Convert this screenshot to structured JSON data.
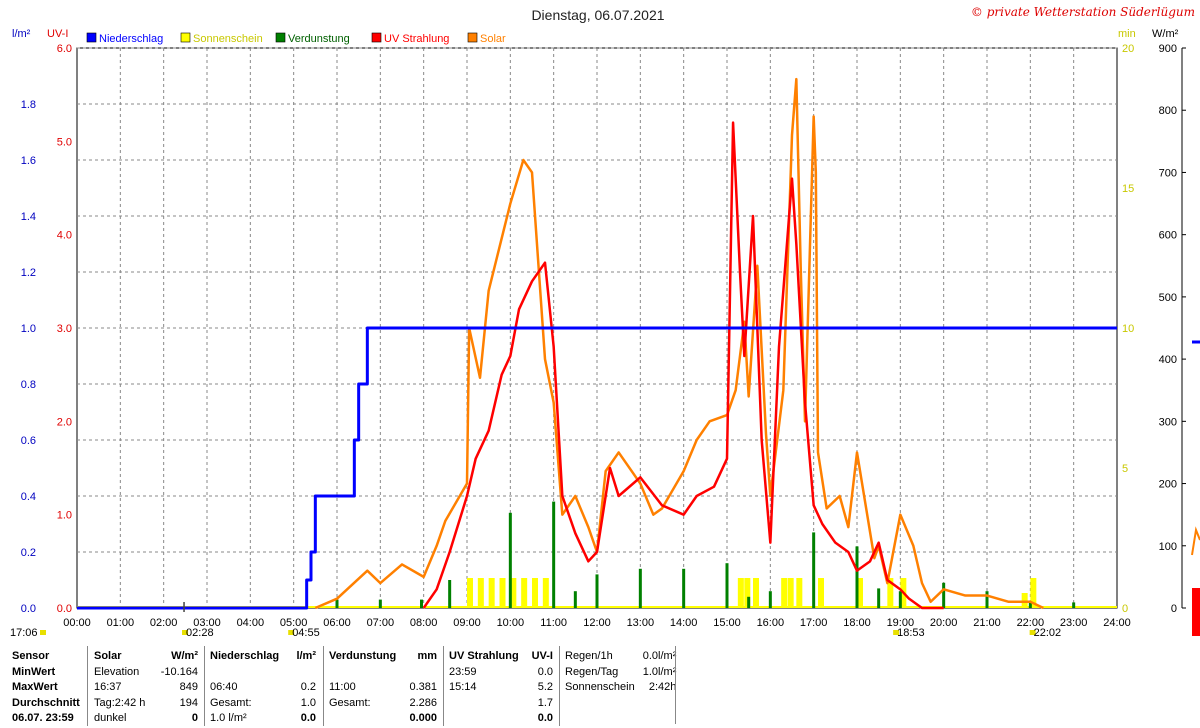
{
  "title": "Dienstag, 06.07.2021",
  "copyright": "© private Wetterstation Süderlügum",
  "axis_units": {
    "left1": "l/m²",
    "left2": "UV-I",
    "right1": "min",
    "right2": "W/m²"
  },
  "legend": [
    {
      "label": "Niederschlag",
      "color": "#0000ff"
    },
    {
      "label": "Sonnenschein",
      "color": "#ffff00"
    },
    {
      "label": "Verdunstung",
      "color": "#008000"
    },
    {
      "label": "UV Strahlung",
      "color": "#ff0000"
    },
    {
      "label": "Solar",
      "color": "#ff8000"
    }
  ],
  "time_markers": [
    {
      "label": "17:06",
      "pos": 17.1
    },
    {
      "label": "02:28",
      "pos": 2.47
    },
    {
      "label": "04:55",
      "pos": 4.92
    },
    {
      "label": "18:53",
      "pos": 18.88
    },
    {
      "label": "22:02",
      "pos": 22.03
    }
  ],
  "chart_data": {
    "type": "line",
    "title": "Dienstag, 06.07.2021",
    "x_ticks": [
      "00:00",
      "01:00",
      "02:00",
      "03:00",
      "04:00",
      "05:00",
      "06:00",
      "07:00",
      "08:00",
      "09:00",
      "10:00",
      "11:00",
      "12:00",
      "13:00",
      "14:00",
      "15:00",
      "16:00",
      "17:00",
      "18:00",
      "19:00",
      "20:00",
      "21:00",
      "22:00",
      "23:00",
      "24:00"
    ],
    "xlim": [
      0,
      24
    ],
    "y_axes": {
      "precip": {
        "label": "l/m²",
        "ticks": [
          "0.0",
          "0.2",
          "0.4",
          "0.6",
          "0.8",
          "1.0",
          "1.2",
          "1.4",
          "1.6",
          "1.8"
        ],
        "ylim": [
          0,
          2.0
        ]
      },
      "uv": {
        "label": "UV-I",
        "ticks": [
          "0.0",
          "1.0",
          "2.0",
          "3.0",
          "4.0",
          "5.0",
          "6.0"
        ],
        "ylim": [
          0,
          6.0
        ]
      },
      "sun": {
        "label": "min",
        "ticks": [
          "0",
          "5",
          "10",
          "15",
          "20"
        ],
        "ylim": [
          0,
          20
        ]
      },
      "solar": {
        "label": "W/m²",
        "ticks": [
          "0",
          "100",
          "200",
          "300",
          "400",
          "500",
          "600",
          "700",
          "800",
          "900"
        ],
        "ylim": [
          0,
          900
        ]
      }
    },
    "series": [
      {
        "name": "Niederschlag",
        "axis": "precip",
        "type": "step",
        "x": [
          0,
          5.3,
          5.4,
          5.5,
          6.3,
          6.4,
          6.5,
          6.7,
          24
        ],
        "y": [
          0,
          0.1,
          0.2,
          0.4,
          0.4,
          0.6,
          0.8,
          1.0,
          1.0
        ]
      },
      {
        "name": "Solar",
        "axis": "solar",
        "type": "line",
        "x": [
          5.5,
          6.0,
          6.7,
          7.0,
          7.5,
          8.0,
          8.3,
          8.5,
          9.0,
          9.05,
          9.3,
          9.5,
          10.0,
          10.3,
          10.5,
          10.7,
          10.8,
          11.0,
          11.2,
          11.5,
          11.8,
          12.0,
          12.2,
          12.5,
          13.0,
          13.3,
          13.5,
          14.0,
          14.3,
          14.6,
          15.0,
          15.2,
          15.4,
          15.5,
          15.7,
          15.9,
          16.0,
          16.3,
          16.5,
          16.6,
          16.7,
          16.8,
          17.0,
          17.05,
          17.1,
          17.3,
          17.6,
          17.8,
          18.0,
          18.4,
          18.5,
          18.7,
          19.0,
          19.3,
          19.5,
          19.7,
          20.0,
          20.5,
          21.0,
          21.5,
          22.0,
          22.3
        ],
        "y": [
          0,
          15,
          60,
          40,
          70,
          50,
          100,
          140,
          200,
          450,
          370,
          510,
          650,
          720,
          700,
          500,
          400,
          330,
          150,
          180,
          130,
          90,
          220,
          250,
          200,
          150,
          160,
          220,
          270,
          300,
          310,
          350,
          460,
          340,
          550,
          280,
          180,
          350,
          760,
          850,
          550,
          300,
          790,
          700,
          250,
          160,
          180,
          130,
          250,
          80,
          100,
          40,
          150,
          100,
          40,
          10,
          30,
          20,
          20,
          10,
          10,
          0
        ]
      },
      {
        "name": "UV Strahlung",
        "axis": "uv",
        "type": "line",
        "x": [
          8.0,
          8.3,
          8.6,
          9.0,
          9.2,
          9.5,
          9.8,
          10.0,
          10.2,
          10.5,
          10.8,
          11.0,
          11.2,
          11.5,
          11.8,
          12.0,
          12.3,
          12.5,
          13.0,
          13.5,
          14.0,
          14.3,
          14.7,
          15.0,
          15.14,
          15.3,
          15.4,
          15.6,
          15.8,
          16.0,
          16.2,
          16.5,
          16.6,
          16.8,
          17.0,
          17.2,
          17.5,
          17.8,
          18.0,
          18.3,
          18.5,
          18.7,
          19.0,
          19.2,
          19.5,
          19.8,
          20.0
        ],
        "y": [
          0,
          0.2,
          0.6,
          1.2,
          1.6,
          1.9,
          2.5,
          2.7,
          3.2,
          3.5,
          3.7,
          2.8,
          1.2,
          0.8,
          0.5,
          0.6,
          1.5,
          1.2,
          1.4,
          1.1,
          1.0,
          1.2,
          1.3,
          1.6,
          5.2,
          3.6,
          2.7,
          4.2,
          1.8,
          0.7,
          2.8,
          4.6,
          3.9,
          2.2,
          1.1,
          0.9,
          0.7,
          0.6,
          0.4,
          0.5,
          0.7,
          0.3,
          0.2,
          0.1,
          0,
          0,
          0
        ]
      },
      {
        "name": "Sonnenschein",
        "axis": "sun",
        "type": "bar",
        "x": [
          9.0,
          9.25,
          9.5,
          9.75,
          10.0,
          10.25,
          10.5,
          10.75,
          15.25,
          15.4,
          15.6,
          16.25,
          16.4,
          16.6,
          17.1,
          18.0,
          18.7,
          19.0,
          21.8,
          22.0
        ],
        "y": [
          1,
          1,
          1,
          1,
          1,
          1,
          1,
          1,
          1,
          1,
          1,
          1,
          1,
          1,
          1,
          1,
          1,
          1,
          0.5,
          1
        ],
        "bar_max": 1
      }
    ],
    "verdunstung": {
      "name": "Verdunstung",
      "axis": "precip",
      "x": [
        6.0,
        7.0,
        7.95,
        8.6,
        10.0,
        11.0,
        11.5,
        12.0,
        13.0,
        14.0,
        15.0,
        15.5,
        16.0,
        17.0,
        18.0,
        18.5,
        19.0,
        20.0,
        21.0,
        22.0,
        23.0
      ],
      "y": [
        0.03,
        0.03,
        0.03,
        0.1,
        0.34,
        0.38,
        0.06,
        0.12,
        0.14,
        0.14,
        0.16,
        0.04,
        0.06,
        0.27,
        0.22,
        0.07,
        0.06,
        0.09,
        0.06,
        0.02,
        0.02
      ]
    }
  },
  "summary": {
    "labels": {
      "sensor": "Sensor",
      "min": "MinWert",
      "max": "MaxWert",
      "avg": "Durchschnitt",
      "date": "06.07. 23:59"
    },
    "solar": {
      "header": "Solar",
      "unit": "W/m²",
      "rows": [
        [
          "Elevation",
          "-10.164"
        ],
        [
          "16:37",
          "849"
        ],
        [
          "Tag:2:42 h",
          "194"
        ],
        [
          "dunkel",
          "0"
        ]
      ]
    },
    "niederschlag": {
      "header": "Niederschlag",
      "unit": "l/m²",
      "rows": [
        [
          "",
          ""
        ],
        [
          "06:40",
          "0.2"
        ],
        [
          "Gesamt:",
          "1.0"
        ],
        [
          "1.0 l/m²",
          "0.0"
        ]
      ]
    },
    "verdunstung": {
      "header": "Verdunstung",
      "unit": "mm",
      "rows": [
        [
          "",
          ""
        ],
        [
          "11:00",
          "0.381"
        ],
        [
          "Gesamt:",
          "2.286"
        ],
        [
          "",
          "0.000"
        ]
      ]
    },
    "uv": {
      "header": "UV Strahlung",
      "unit": "UV-I",
      "rows": [
        [
          "23:59",
          "0.0"
        ],
        [
          "15:14",
          "5.2"
        ],
        [
          "",
          "1.7"
        ],
        [
          "",
          "0.0"
        ]
      ]
    },
    "regen": {
      "rows": [
        [
          "Regen/1h",
          "0.0l/m²"
        ],
        [
          "Regen/Tag",
          "1.0l/m²"
        ],
        [
          "Sonnenschein",
          "2:42h"
        ]
      ]
    }
  },
  "side": {
    "value": "3"
  }
}
